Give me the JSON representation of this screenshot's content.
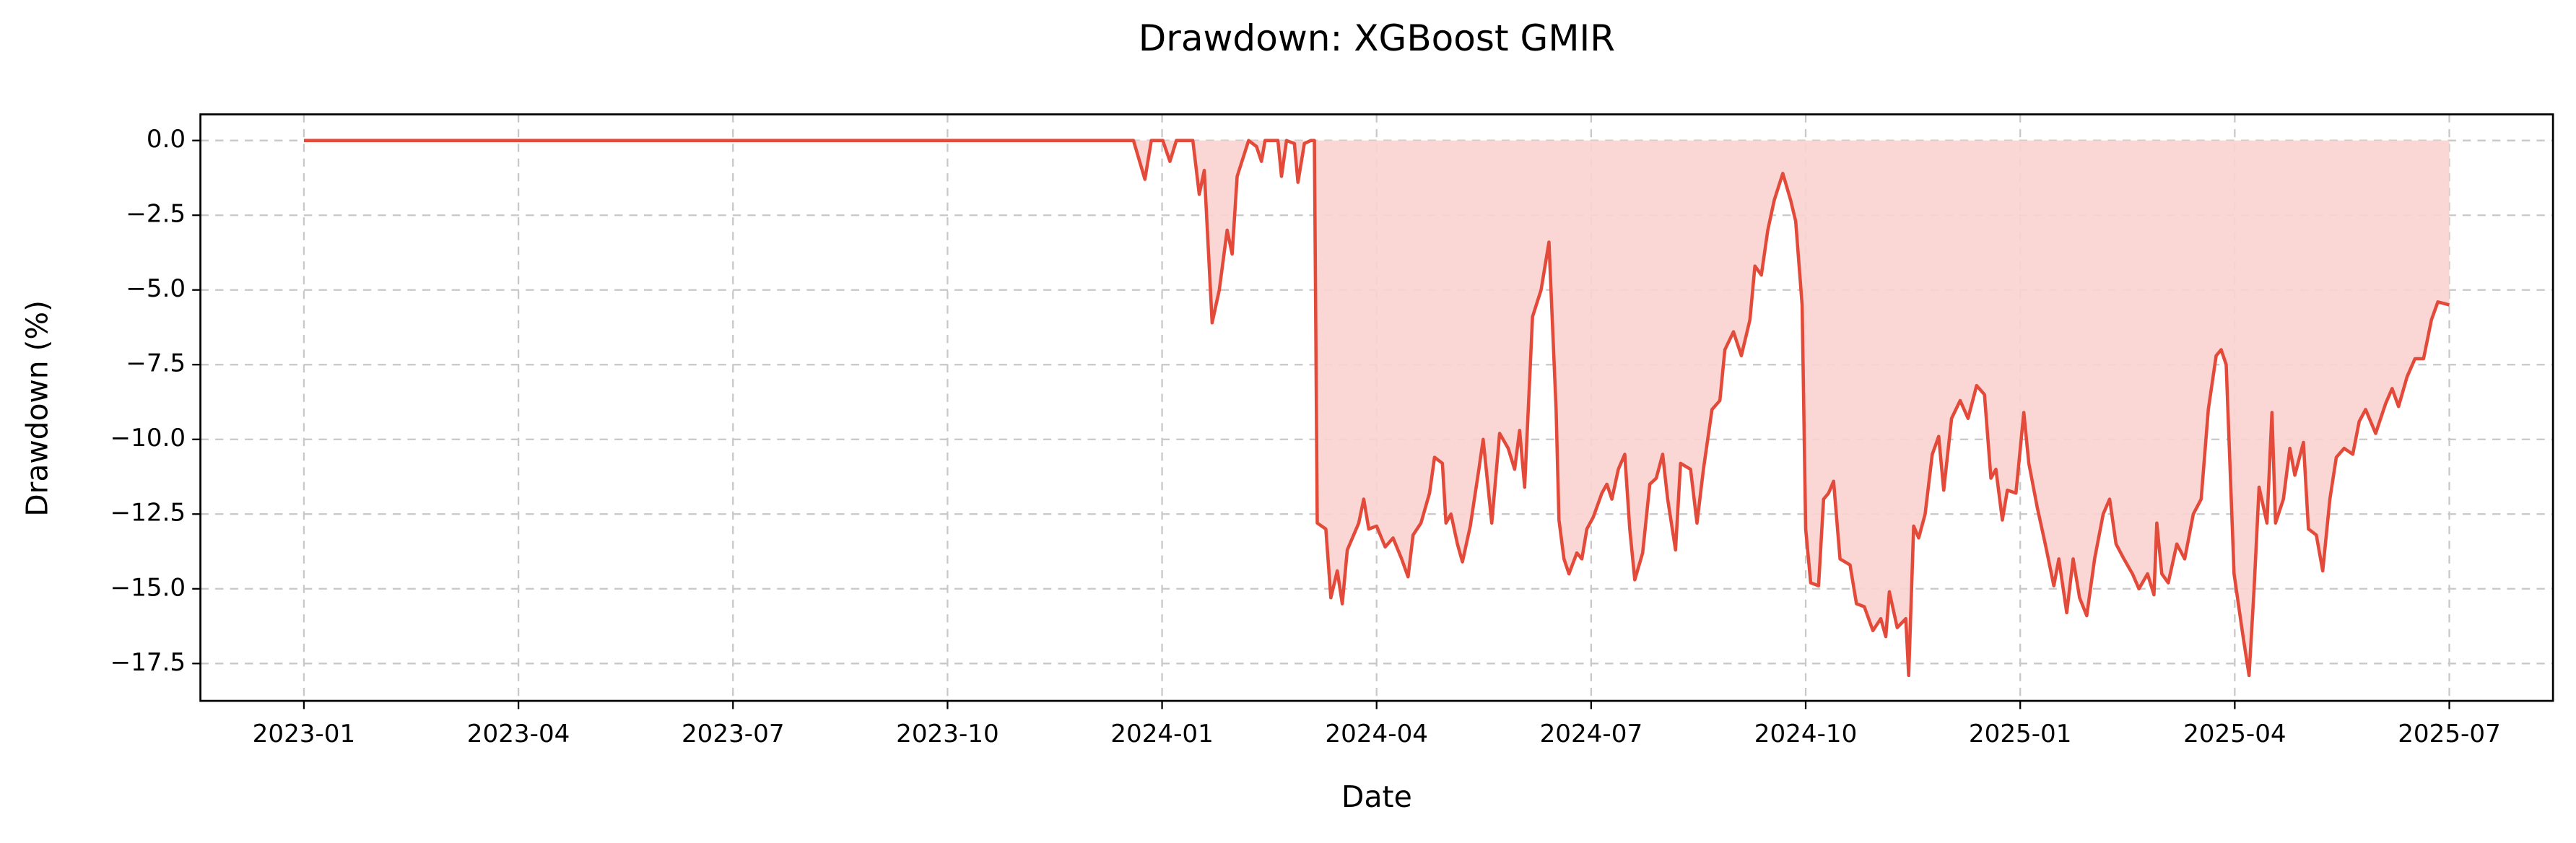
{
  "chart_data": {
    "type": "area",
    "title": "Drawdown: XGBoost GMIR",
    "x_label": "Date",
    "y_label": "Drawdown (%)",
    "series": [
      {
        "color": "#e34a3a",
        "fill": "#f9d3d0",
        "x": [
          0,
          11.6,
          11.76,
          11.85,
          12.01,
          12.11,
          12.2,
          12.43,
          12.52,
          12.59,
          12.7,
          12.8,
          12.91,
          12.98,
          13.05,
          13.21,
          13.32,
          13.39,
          13.44,
          13.62,
          13.67,
          13.74,
          13.85,
          13.9,
          13.99,
          14.08,
          14.13,
          14.17,
          14.29,
          14.36,
          14.45,
          14.52,
          14.59,
          14.75,
          14.82,
          14.89,
          15.0,
          15.12,
          15.23,
          15.35,
          15.44,
          15.51,
          15.62,
          15.74,
          15.81,
          15.92,
          15.97,
          16.04,
          16.13,
          16.2,
          16.31,
          16.43,
          16.49,
          16.61,
          16.72,
          16.84,
          16.93,
          17.0,
          17.07,
          17.14,
          17.18,
          17.3,
          17.41,
          17.51,
          17.55,
          17.62,
          17.69,
          17.8,
          17.87,
          17.94,
          18.03,
          18.15,
          18.22,
          18.29,
          18.38,
          18.47,
          18.54,
          18.61,
          18.72,
          18.82,
          18.91,
          19.0,
          19.07,
          19.18,
          19.25,
          19.39,
          19.48,
          19.57,
          19.69,
          19.8,
          19.87,
          19.99,
          20.1,
          20.22,
          20.29,
          20.38,
          20.47,
          20.56,
          20.68,
          20.79,
          20.86,
          20.95,
          21.0,
          21.07,
          21.18,
          21.25,
          21.32,
          21.39,
          21.48,
          21.62,
          21.71,
          21.82,
          21.94,
          22.05,
          22.12,
          22.17,
          22.28,
          22.4,
          22.44,
          22.51,
          22.58,
          22.67,
          22.77,
          22.86,
          22.93,
          23.04,
          23.16,
          23.27,
          23.39,
          23.5,
          23.59,
          23.66,
          23.75,
          23.82,
          23.94,
          24.05,
          24.12,
          24.24,
          24.35,
          24.47,
          24.54,
          24.65,
          24.74,
          24.83,
          24.93,
          25.04,
          25.16,
          25.25,
          25.34,
          25.45,
          25.57,
          25.66,
          25.78,
          25.87,
          25.91,
          25.98,
          26.07,
          26.19,
          26.3,
          26.42,
          26.53,
          26.63,
          26.74,
          26.81,
          26.88,
          26.99,
          27.11,
          27.2,
          27.27,
          27.34,
          27.45,
          27.52,
          27.57,
          27.68,
          27.77,
          27.84,
          27.96,
          28.03,
          28.14,
          28.23,
          28.33,
          28.42,
          28.53,
          28.65,
          28.74,
          28.83,
          28.97,
          29.11,
          29.2,
          29.29,
          29.41,
          29.52,
          29.64,
          29.75,
          29.84,
          30.0
        ],
        "values": [
          0,
          0,
          -1.3,
          0,
          0,
          -0.7,
          0,
          0,
          -1.8,
          -1.0,
          -6.1,
          -5.0,
          -3.0,
          -3.8,
          -1.2,
          0,
          -0.2,
          -0.7,
          0,
          0,
          -1.2,
          0,
          -0.1,
          -1.4,
          -0.1,
          0,
          0,
          -12.8,
          -13.0,
          -15.3,
          -14.4,
          -15.5,
          -13.7,
          -12.8,
          -12.0,
          -13.0,
          -12.9,
          -13.6,
          -13.3,
          -14.0,
          -14.6,
          -13.2,
          -12.8,
          -11.8,
          -10.6,
          -10.8,
          -12.8,
          -12.5,
          -13.5,
          -14.1,
          -12.9,
          -11.0,
          -10.0,
          -12.8,
          -9.8,
          -10.3,
          -11.0,
          -9.7,
          -11.6,
          -8.0,
          -5.9,
          -5.0,
          -3.4,
          -9.0,
          -12.7,
          -14.0,
          -14.5,
          -13.8,
          -14.0,
          -13.0,
          -12.6,
          -11.8,
          -11.5,
          -12.0,
          -11.0,
          -10.5,
          -13.0,
          -14.7,
          -13.8,
          -11.5,
          -11.3,
          -10.5,
          -12.0,
          -13.7,
          -10.8,
          -11.0,
          -12.8,
          -11.0,
          -9.0,
          -8.7,
          -7.0,
          -6.4,
          -7.2,
          -6.0,
          -4.2,
          -4.5,
          -3.0,
          -2.0,
          -1.1,
          -2.0,
          -2.7,
          -5.5,
          -13.0,
          -14.8,
          -14.9,
          -12.0,
          -11.8,
          -11.4,
          -14.0,
          -14.2,
          -15.5,
          -15.6,
          -16.4,
          -16.0,
          -16.6,
          -15.1,
          -16.3,
          -16.0,
          -17.9,
          -12.9,
          -13.3,
          -12.5,
          -10.5,
          -9.9,
          -11.7,
          -9.3,
          -8.7,
          -9.3,
          -8.2,
          -8.5,
          -11.3,
          -11.0,
          -12.7,
          -11.7,
          -11.8,
          -9.1,
          -10.8,
          -12.3,
          -13.5,
          -14.9,
          -14.0,
          -15.8,
          -14.0,
          -15.3,
          -15.9,
          -14.0,
          -12.5,
          -12.0,
          -13.5,
          -14.0,
          -14.5,
          -15.0,
          -14.5,
          -15.2,
          -12.8,
          -14.5,
          -14.8,
          -13.5,
          -14.0,
          -12.5,
          -12.0,
          -9.0,
          -7.2,
          -7.0,
          -7.5,
          -14.5,
          -16.5,
          -17.9,
          -15.0,
          -11.6,
          -12.8,
          -9.1,
          -12.8,
          -12.0,
          -10.3,
          -11.2,
          -10.1,
          -13.0,
          -13.2,
          -14.4,
          -12.0,
          -10.6,
          -10.3,
          -10.5,
          -9.4,
          -9.0,
          -9.8,
          -8.8,
          -8.3,
          -8.9,
          -7.9,
          -7.3,
          -7.3,
          -6.0,
          -5.4,
          -5.5
        ]
      }
    ],
    "xlim": [
      -1.447,
      31.45
    ],
    "ylim": [
      -18.75,
      0.875
    ],
    "xticks": [
      {
        "value": 0,
        "label": "2023-01"
      },
      {
        "value": 3,
        "label": "2023-04"
      },
      {
        "value": 6,
        "label": "2023-07"
      },
      {
        "value": 9,
        "label": "2023-10"
      },
      {
        "value": 12,
        "label": "2024-01"
      },
      {
        "value": 15,
        "label": "2024-04"
      },
      {
        "value": 18,
        "label": "2024-07"
      },
      {
        "value": 21,
        "label": "2024-10"
      },
      {
        "value": 24,
        "label": "2025-01"
      },
      {
        "value": 27,
        "label": "2025-04"
      },
      {
        "value": 30,
        "label": "2025-07"
      }
    ],
    "yticks": [
      {
        "value": 0,
        "label": "0.0"
      },
      {
        "value": -2.5,
        "label": "−2.5"
      },
      {
        "value": -5,
        "label": "−5.0"
      },
      {
        "value": -7.5,
        "label": "−7.5"
      },
      {
        "value": -10,
        "label": "−10.0"
      },
      {
        "value": -12.5,
        "label": "−12.5"
      },
      {
        "value": -15,
        "label": "−15.0"
      },
      {
        "value": -17.5,
        "label": "−17.5"
      }
    ],
    "grid": true
  }
}
